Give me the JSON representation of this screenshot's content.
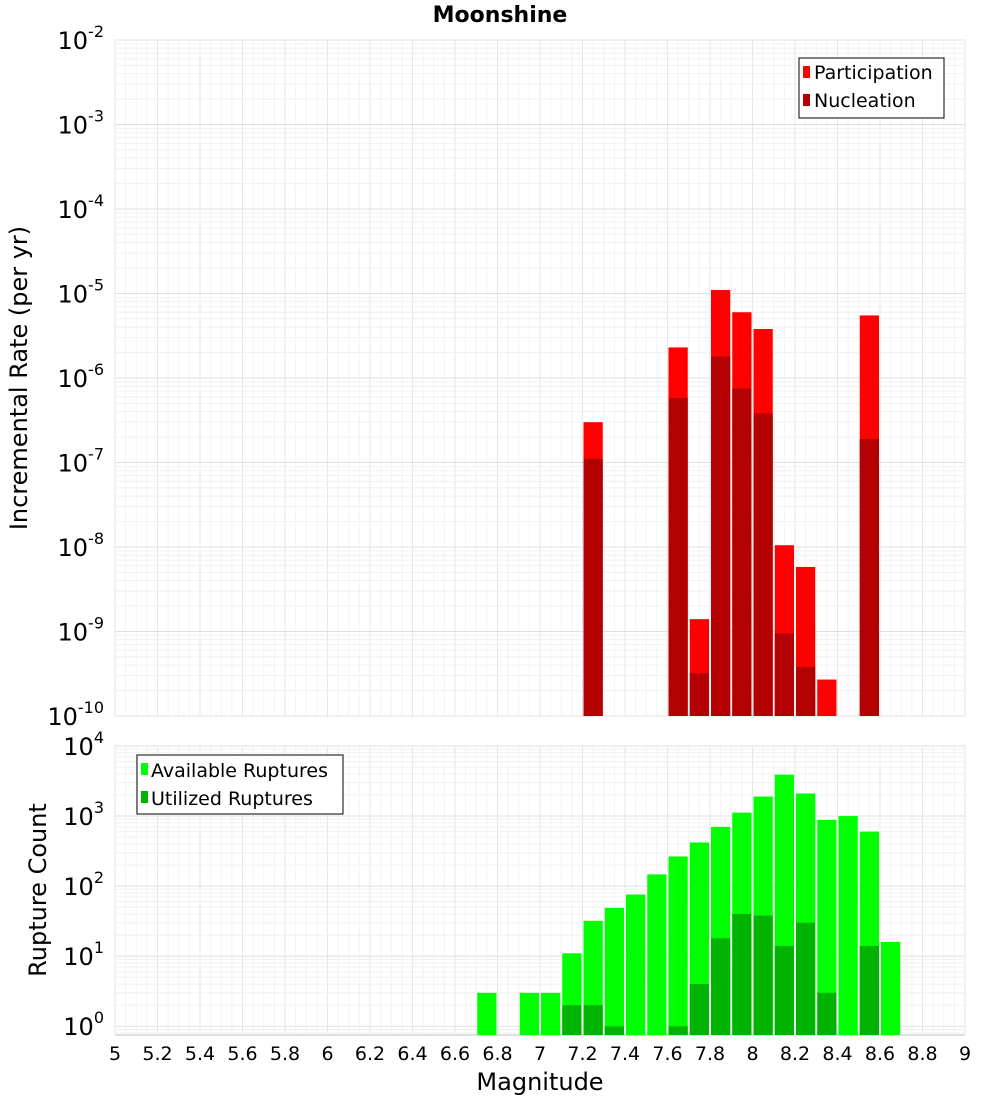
{
  "chart_data": [
    {
      "type": "bar",
      "title": "Moonshine",
      "xlabel": "",
      "ylabel": "Incremental Rate (per yr)",
      "yscale": "log",
      "ylim": [
        1e-10,
        0.01
      ],
      "xlim": [
        5,
        9
      ],
      "grid": true,
      "legend_position": "top-right",
      "y_tick_labels": [
        {
          "base": "10",
          "exp": "-10",
          "value": 1e-10
        },
        {
          "base": "10",
          "exp": "-9",
          "value": 1e-09
        },
        {
          "base": "10",
          "exp": "-8",
          "value": 1e-08
        },
        {
          "base": "10",
          "exp": "-7",
          "value": 1e-07
        },
        {
          "base": "10",
          "exp": "-6",
          "value": 1e-06
        },
        {
          "base": "10",
          "exp": "-5",
          "value": 1e-05
        },
        {
          "base": "10",
          "exp": "-4",
          "value": 0.0001
        },
        {
          "base": "10",
          "exp": "-3",
          "value": 0.001
        },
        {
          "base": "10",
          "exp": "-2",
          "value": 0.01
        }
      ],
      "series": [
        {
          "name": "Participation",
          "color": "#ff0000",
          "x": [
            7.25,
            7.65,
            7.75,
            7.85,
            7.95,
            8.05,
            8.15,
            8.25,
            8.35,
            8.55
          ],
          "values": [
            3e-07,
            2.3e-06,
            1.4e-09,
            1.1e-05,
            6e-06,
            3.8e-06,
            1.05e-08,
            5.8e-09,
            2.7e-10,
            5.5e-06
          ]
        },
        {
          "name": "Nucleation",
          "color": "#b30000",
          "x": [
            7.25,
            7.65,
            7.75,
            7.85,
            7.95,
            8.05,
            8.15,
            8.25,
            8.55
          ],
          "values": [
            1.1e-07,
            5.8e-07,
            3.2e-10,
            1.8e-06,
            7.5e-07,
            3.8e-07,
            9.5e-10,
            3.8e-10,
            1.9e-07
          ]
        }
      ]
    },
    {
      "type": "bar",
      "title": "",
      "xlabel": "Magnitude",
      "ylabel": "Rupture Count",
      "yscale": "log",
      "ylim": [
        0.75,
        10000
      ],
      "xlim": [
        5,
        9
      ],
      "grid": true,
      "legend_position": "top-left",
      "x_tick_labels": [
        "5",
        "5.2",
        "5.4",
        "5.6",
        "5.8",
        "6",
        "6.2",
        "6.4",
        "6.6",
        "6.8",
        "7",
        "7.2",
        "7.4",
        "7.6",
        "7.8",
        "8",
        "8.2",
        "8.4",
        "8.6",
        "8.8",
        "9"
      ],
      "y_tick_labels": [
        {
          "base": "10",
          "exp": "0",
          "value": 1
        },
        {
          "base": "10",
          "exp": "1",
          "value": 10
        },
        {
          "base": "10",
          "exp": "2",
          "value": 100
        },
        {
          "base": "10",
          "exp": "3",
          "value": 1000
        },
        {
          "base": "10",
          "exp": "4",
          "value": 10000
        }
      ],
      "series": [
        {
          "name": "Available Ruptures",
          "color": "#00ff00",
          "x": [
            6.75,
            6.95,
            7.05,
            7.15,
            7.25,
            7.35,
            7.45,
            7.55,
            7.65,
            7.75,
            7.85,
            7.95,
            8.05,
            8.15,
            8.25,
            8.35,
            8.45,
            8.55,
            8.65
          ],
          "values": [
            3,
            3,
            3,
            11,
            32,
            49,
            76,
            147,
            265,
            420,
            700,
            1120,
            1900,
            3900,
            2100,
            880,
            1000,
            600,
            16
          ]
        },
        {
          "name": "Utilized Ruptures",
          "color": "#00b300",
          "x": [
            7.15,
            7.25,
            7.35,
            7.65,
            7.75,
            7.85,
            7.95,
            8.05,
            8.15,
            8.25,
            8.35,
            8.55
          ],
          "values": [
            2,
            2,
            1,
            1,
            4,
            18,
            40,
            38,
            14,
            30,
            3,
            14
          ]
        }
      ]
    }
  ]
}
